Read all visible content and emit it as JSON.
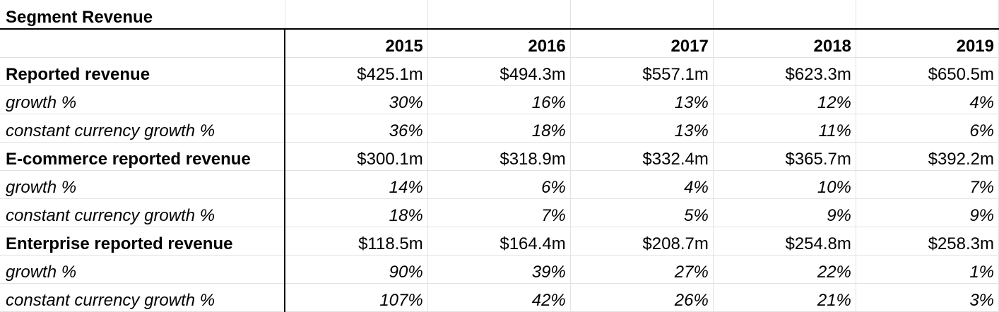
{
  "sheet": {
    "title": "Segment Revenue",
    "years": [
      "2015",
      "2016",
      "2017",
      "2018",
      "2019"
    ],
    "rows": [
      {
        "label": "Reported revenue",
        "style": "bold",
        "values": [
          "$425.1m",
          "$494.3m",
          "$557.1m",
          "$623.3m",
          "$650.5m"
        ]
      },
      {
        "label": "growth %",
        "style": "italic",
        "values": [
          "30%",
          "16%",
          "13%",
          "12%",
          "4%"
        ]
      },
      {
        "label": "constant currency growth %",
        "style": "italic",
        "values": [
          "36%",
          "18%",
          "13%",
          "11%",
          "6%"
        ]
      },
      {
        "label": "E-commerce reported revenue",
        "style": "bold",
        "values": [
          "$300.1m",
          "$318.9m",
          "$332.4m",
          "$365.7m",
          "$392.2m"
        ]
      },
      {
        "label": "growth %",
        "style": "italic",
        "values": [
          "14%",
          "6%",
          "4%",
          "10%",
          "7%"
        ]
      },
      {
        "label": "constant currency growth %",
        "style": "italic",
        "values": [
          "18%",
          "7%",
          "5%",
          "9%",
          "9%"
        ]
      },
      {
        "label": "Enterprise reported revenue",
        "style": "bold",
        "values": [
          "$118.5m",
          "$164.4m",
          "$208.7m",
          "$254.8m",
          "$258.3m"
        ]
      },
      {
        "label": "growth %",
        "style": "italic",
        "values": [
          "90%",
          "39%",
          "27%",
          "22%",
          "1%"
        ]
      },
      {
        "label": "constant currency growth %",
        "style": "italic",
        "values": [
          "107%",
          "42%",
          "26%",
          "21%",
          "3%"
        ]
      }
    ]
  }
}
